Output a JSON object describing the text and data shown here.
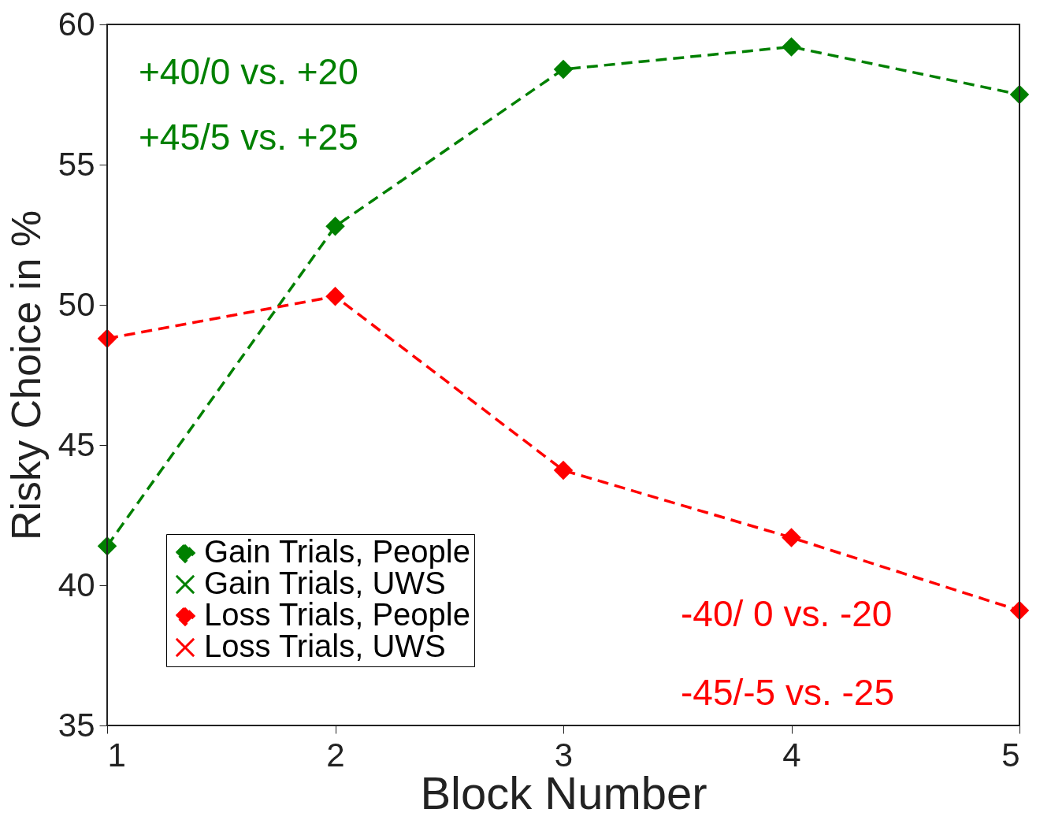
{
  "chart_data": {
    "type": "line",
    "xlabel": "Block Number",
    "ylabel": "Risky Choice in %",
    "x": [
      1,
      2,
      3,
      4,
      5
    ],
    "xlim": [
      1,
      5
    ],
    "xticks": [
      1,
      2,
      3,
      4,
      5
    ],
    "ylim": [
      35,
      60
    ],
    "yticks": [
      35,
      40,
      45,
      50,
      55,
      60
    ],
    "grid": false,
    "legend": "bottom left",
    "series": [
      {
        "name": "Gain Trials, People",
        "color": "#008000",
        "marker": "diamond",
        "line_style": "dashed",
        "values": [
          41.4,
          52.8,
          58.4,
          59.2,
          57.5
        ]
      },
      {
        "name": "Gain Trials, UWS",
        "color": "#008000",
        "marker": "cross",
        "line_style": "solid",
        "values": [
          null,
          null,
          null,
          null,
          null
        ]
      },
      {
        "name": "Loss Trials, People",
        "color": "#ff0000",
        "marker": "diamond",
        "line_style": "dashed",
        "values": [
          48.8,
          50.3,
          44.1,
          41.7,
          39.1
        ]
      },
      {
        "name": "Loss Trials, UWS",
        "color": "#ff0000",
        "marker": "cross",
        "line_style": "solid",
        "values": [
          null,
          null,
          null,
          null,
          null
        ]
      }
    ],
    "annotations": [
      "+40/0 vs. +20",
      "+45/5 vs. +25",
      "-40/ 0  vs.  -20",
      "-45/-5  vs.  -25"
    ]
  }
}
